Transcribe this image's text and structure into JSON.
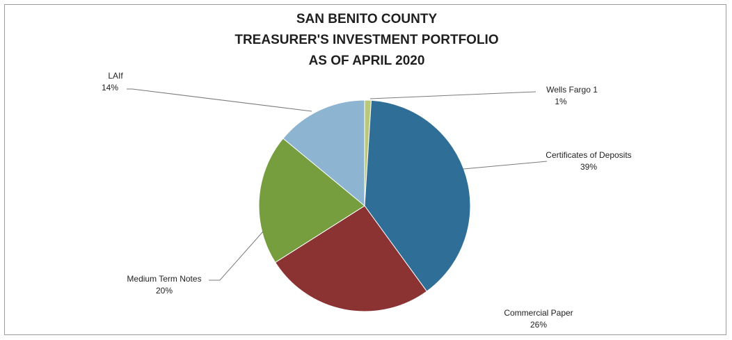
{
  "chart_data": {
    "type": "pie",
    "title_lines": [
      "SAN BENITO COUNTY",
      "TREASURER'S INVESTMENT PORTFOLIO",
      "AS OF APRIL 2020"
    ],
    "slices": [
      {
        "name": "Wells Fargo 1",
        "value": 1,
        "label": "1%",
        "color": "#b9c97a"
      },
      {
        "name": "Certificates of Deposits",
        "value": 39,
        "label": "39%",
        "color": "#2e6e97"
      },
      {
        "name": "Commercial Paper",
        "value": 26,
        "label": "26%",
        "color": "#8b3232"
      },
      {
        "name": "Medium Term Notes",
        "value": 20,
        "label": "20%",
        "color": "#769d3e"
      },
      {
        "name": "LAIf",
        "value": 14,
        "label": "14%",
        "color": "#8db4d0"
      }
    ],
    "legend": "none"
  }
}
